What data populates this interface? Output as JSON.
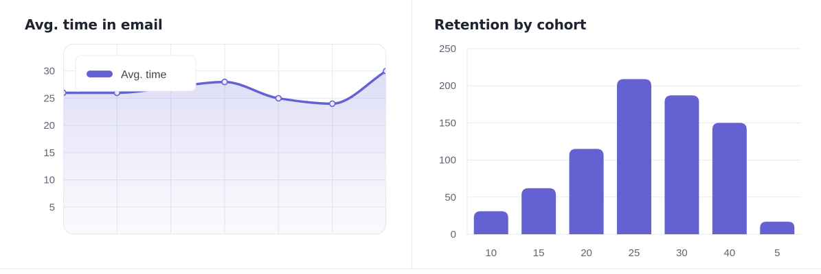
{
  "charts": {
    "line": {
      "title": "Avg. time in email"
    },
    "bar": {
      "title": "Retention by cohort"
    }
  },
  "chart_data": [
    {
      "type": "line",
      "title": "Avg. time in email",
      "series": [
        {
          "name": "Avg. time",
          "values": [
            26,
            26,
            27,
            28,
            25,
            24,
            30
          ]
        }
      ],
      "x": [
        0,
        1,
        2,
        3,
        4,
        5,
        6
      ],
      "yticks": [
        5,
        10,
        15,
        20,
        25,
        30
      ],
      "ylim": [
        0,
        35
      ],
      "smooth": true,
      "area_fill": true,
      "grid": true,
      "legend": "top-left",
      "color": "#6461d3"
    },
    {
      "type": "bar",
      "title": "Retention by cohort",
      "categories": [
        "10",
        "15",
        "20",
        "25",
        "30",
        "40",
        "5"
      ],
      "values": [
        31,
        62,
        115,
        209,
        187,
        150,
        17
      ],
      "yticks": [
        0,
        50,
        100,
        150,
        200,
        250
      ],
      "ylim": [
        0,
        250
      ],
      "grid": true,
      "color": "#6461d3"
    }
  ]
}
